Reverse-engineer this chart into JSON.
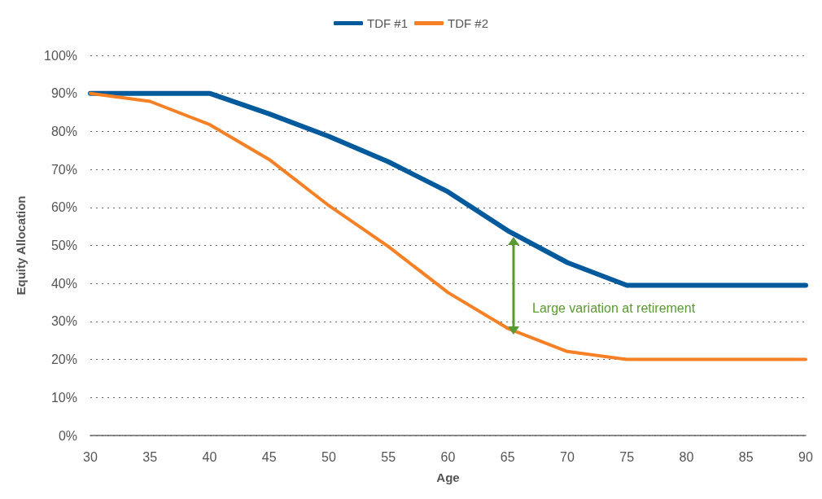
{
  "chart_data": {
    "type": "line",
    "xlabel": "Age",
    "ylabel": "Equity Allocation",
    "categories": [
      "30",
      "35",
      "40",
      "45",
      "50",
      "55",
      "60",
      "65",
      "70",
      "75",
      "80",
      "85",
      "90"
    ],
    "series": [
      {
        "name": "TDF #1",
        "color": "#005a9c",
        "values": [
          90,
          90,
          90,
          84.6,
          78.7,
          72,
          64.1,
          53.9,
          45.5,
          39.5,
          39.5,
          39.5,
          39.5
        ]
      },
      {
        "name": "TDF #2",
        "color": "#f58025",
        "values": [
          90,
          87.9,
          81.8,
          72.6,
          60.5,
          49.7,
          37.6,
          28.2,
          22.1,
          20,
          20,
          20,
          20
        ]
      }
    ],
    "ylim": [
      0,
      100
    ],
    "yticks": [
      {
        "value": 0,
        "label": "0%"
      },
      {
        "value": 10,
        "label": "10%"
      },
      {
        "value": 20,
        "label": "20%"
      },
      {
        "value": 30,
        "label": "30%"
      },
      {
        "value": 40,
        "label": "40%"
      },
      {
        "value": 50,
        "label": "50%"
      },
      {
        "value": 60,
        "label": "60%"
      },
      {
        "value": 70,
        "label": "70%"
      },
      {
        "value": 80,
        "label": "80%"
      },
      {
        "value": 90,
        "label": "90%"
      },
      {
        "value": 100,
        "label": "100%"
      }
    ],
    "annotations": [
      "Large variation at retirement"
    ],
    "grid": "y",
    "legend": "top",
    "marker": "none",
    "line_style": "solid"
  }
}
